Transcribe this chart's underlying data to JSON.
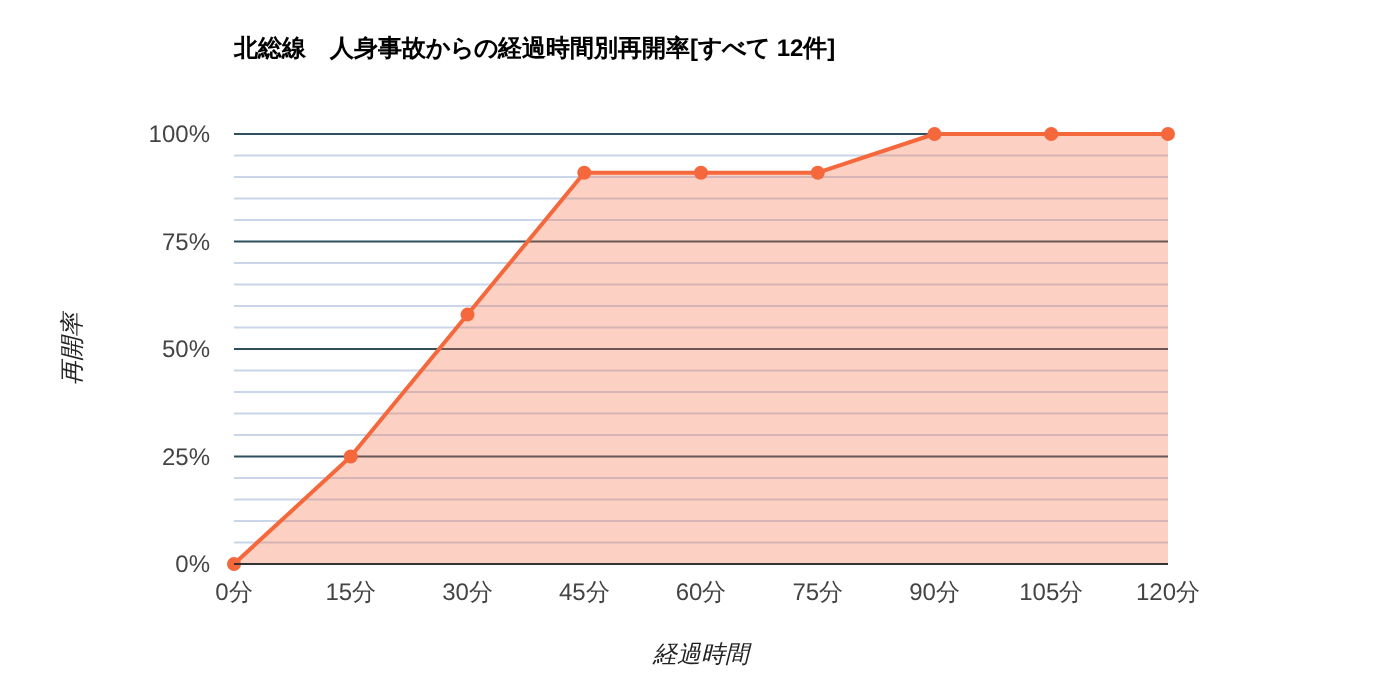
{
  "chart_data": {
    "type": "area",
    "title": "北総線　人身事故からの経過時間別再開率[すべて 12件]",
    "xlabel": "経過時間",
    "ylabel": "再開率",
    "x": [
      0,
      15,
      30,
      45,
      60,
      75,
      90,
      105,
      120
    ],
    "series": [
      {
        "color": "#f4683c",
        "values": [
          0,
          25,
          58,
          91,
          91,
          91,
          100,
          100,
          100
        ]
      }
    ],
    "xlim": [
      0,
      120
    ],
    "xticks": [
      {
        "value": 0,
        "label": "0分"
      },
      {
        "value": 15,
        "label": "15分"
      },
      {
        "value": 30,
        "label": "30分"
      },
      {
        "value": 45,
        "label": "45分"
      },
      {
        "value": 60,
        "label": "60分"
      },
      {
        "value": 75,
        "label": "75分"
      },
      {
        "value": 90,
        "label": "90分"
      },
      {
        "value": 105,
        "label": "105分"
      },
      {
        "value": 120,
        "label": "120分"
      }
    ],
    "ylim": [
      0,
      100
    ],
    "yticks": [
      {
        "value": 0,
        "label": "0%"
      },
      {
        "value": 5,
        "label": null
      },
      {
        "value": 10,
        "label": null
      },
      {
        "value": 15,
        "label": null
      },
      {
        "value": 20,
        "label": null
      },
      {
        "value": 25,
        "label": "25%"
      },
      {
        "value": 30,
        "label": null
      },
      {
        "value": 35,
        "label": null
      },
      {
        "value": 40,
        "label": null
      },
      {
        "value": 45,
        "label": null
      },
      {
        "value": 50,
        "label": "50%"
      },
      {
        "value": 55,
        "label": null
      },
      {
        "value": 60,
        "label": null
      },
      {
        "value": 65,
        "label": null
      },
      {
        "value": 70,
        "label": null
      },
      {
        "value": 75,
        "label": "75%"
      },
      {
        "value": 80,
        "label": null
      },
      {
        "value": 85,
        "label": null
      },
      {
        "value": 90,
        "label": null
      },
      {
        "value": 95,
        "label": null
      },
      {
        "value": 100,
        "label": "100%"
      }
    ],
    "grid": "y",
    "marker": "circle",
    "line_style": "solid"
  }
}
